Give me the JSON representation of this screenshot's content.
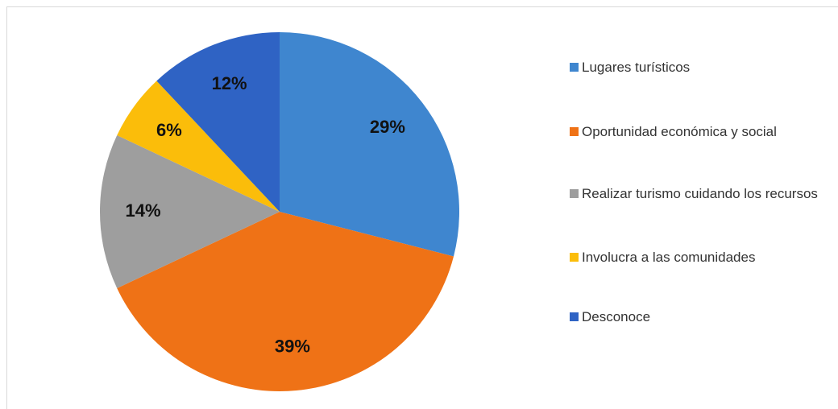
{
  "chart_data": {
    "type": "pie",
    "categories": [
      "Lugares turísticos",
      "Oportunidad económica y social",
      "Realizar turismo cuidando los recursos",
      "Involucra a las comunidades",
      "Desconoce"
    ],
    "values": [
      29,
      39,
      14,
      6,
      12
    ],
    "value_labels": [
      "29%",
      "39%",
      "14%",
      "6%",
      "12%"
    ],
    "colors": [
      "#3f86cf",
      "#ef7216",
      "#9e9e9e",
      "#fbbd0a",
      "#2f63c4"
    ],
    "legend": "right"
  }
}
